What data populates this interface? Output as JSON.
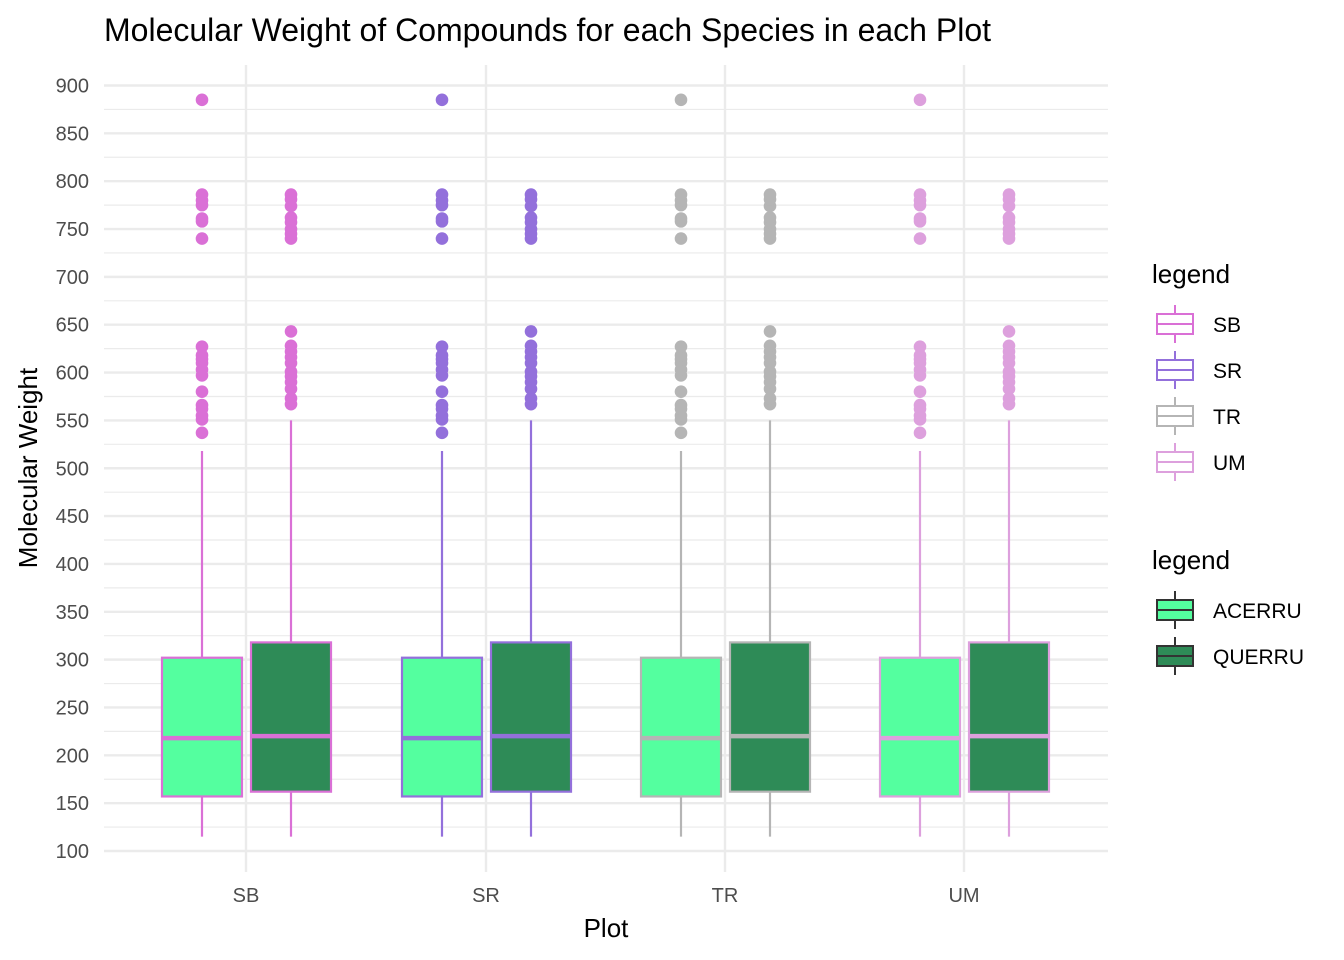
{
  "chart_data": {
    "type": "box",
    "title": "Molecular Weight of Compounds for each Species in each Plot",
    "xlabel": "Plot",
    "ylabel": "Molecular Weight",
    "ylim": [
      95,
      905
    ],
    "y_ticks": [
      100,
      150,
      200,
      250,
      300,
      350,
      400,
      450,
      500,
      550,
      600,
      650,
      700,
      750,
      800,
      850,
      900
    ],
    "categories": [
      "SB",
      "SR",
      "TR",
      "UM"
    ],
    "grid": true,
    "legend_placement": "right",
    "color_legend": {
      "title": "legend",
      "items": [
        {
          "label": "SB",
          "color": "#DA70D6"
        },
        {
          "label": "SR",
          "color": "#9370DB"
        },
        {
          "label": "TR",
          "color": "#B5B5B5"
        },
        {
          "label": "UM",
          "color": "#DDA0DD"
        }
      ]
    },
    "fill_legend": {
      "title": "legend",
      "items": [
        {
          "label": "ACERRU",
          "color": "#54FF9F"
        },
        {
          "label": "QUERRU",
          "color": "#2E8B57"
        }
      ]
    },
    "series": [
      {
        "name": "ACERRU",
        "fill": "#54FF9F",
        "box": {
          "min": 115,
          "q1": 157,
          "median": 218,
          "q3": 302,
          "max": 518
        },
        "outliers": [
          537,
          551,
          555,
          562,
          566,
          580,
          597,
          603,
          610,
          614,
          618,
          627,
          740,
          758,
          761,
          775,
          780,
          786,
          885
        ]
      },
      {
        "name": "QUERRU",
        "fill": "#2E8B57",
        "box": {
          "min": 115,
          "q1": 162,
          "median": 220,
          "q3": 318,
          "max": 550
        },
        "outliers": [
          567,
          573,
          583,
          590,
          596,
          601,
          610,
          616,
          622,
          628,
          643,
          740,
          745,
          750,
          757,
          762,
          774,
          781,
          786
        ]
      }
    ]
  }
}
